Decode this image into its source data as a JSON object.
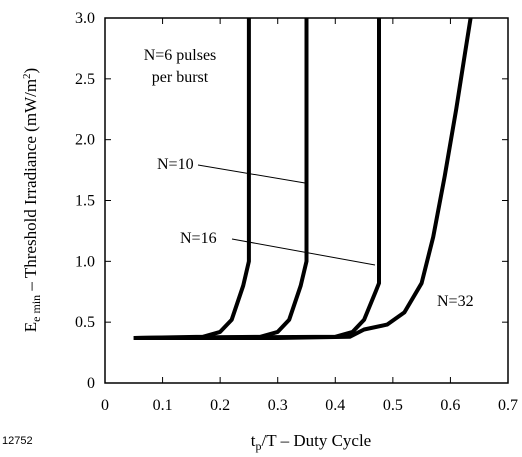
{
  "chart_data": {
    "type": "line",
    "title": "",
    "xlabel": "t_p/T – Duty Cycle",
    "xlabel_parts": {
      "t": "t",
      "sub": "p",
      "rest": "/T – Duty Cycle"
    },
    "ylabel": "E_e min – Threshold Irradiance (mW/m²)",
    "ylabel_parts": {
      "E": "E",
      "sub": "e min",
      "rest": " – Threshold Irradiance (mW/m",
      "sup": "2",
      "close": ")"
    },
    "xlim": [
      0,
      0.7
    ],
    "ylim": [
      0,
      3.0
    ],
    "x_ticks": [
      "0",
      "0.1",
      "0.2",
      "0.3",
      "0.4",
      "0.5",
      "0.6",
      "0.7"
    ],
    "y_ticks": [
      "0",
      "0.5",
      "1.0",
      "1.5",
      "2.0",
      "2.5",
      "3.0"
    ],
    "grid": false,
    "figure_id": "12752",
    "series": [
      {
        "name": "N=6 pulses per burst",
        "x": [
          0.05,
          0.17,
          0.2,
          0.22,
          0.24,
          0.25,
          0.25
        ],
        "y": [
          0.37,
          0.38,
          0.42,
          0.52,
          0.8,
          1.0,
          3.0
        ]
      },
      {
        "name": "N=10",
        "x": [
          0.05,
          0.27,
          0.3,
          0.32,
          0.34,
          0.35,
          0.35
        ],
        "y": [
          0.37,
          0.38,
          0.42,
          0.52,
          0.8,
          1.0,
          3.0
        ]
      },
      {
        "name": "N=16",
        "x": [
          0.05,
          0.4,
          0.43,
          0.45,
          0.47,
          0.476,
          0.476
        ],
        "y": [
          0.37,
          0.38,
          0.42,
          0.52,
          0.75,
          0.82,
          3.0
        ]
      },
      {
        "name": "N=32",
        "x": [
          0.05,
          0.3,
          0.425,
          0.45,
          0.49,
          0.52,
          0.55,
          0.57,
          0.59,
          0.61,
          0.625,
          0.635
        ],
        "y": [
          0.37,
          0.37,
          0.38,
          0.44,
          0.48,
          0.58,
          0.82,
          1.2,
          1.7,
          2.25,
          2.7,
          3.0
        ]
      }
    ],
    "annotations": [
      {
        "lines": [
          "N=6 pulses",
          "per burst"
        ]
      },
      {
        "lines": [
          "N=10"
        ]
      },
      {
        "lines": [
          "N=16"
        ]
      },
      {
        "lines": [
          "N=32"
        ]
      }
    ]
  }
}
